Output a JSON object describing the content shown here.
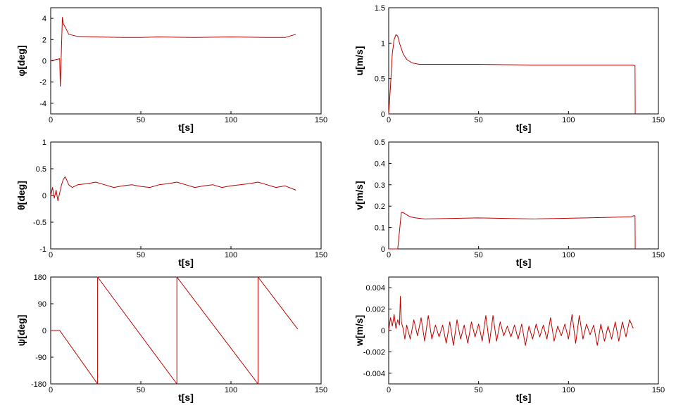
{
  "chart_data": [
    {
      "id": "phi",
      "type": "line",
      "xlabel": "t[s]",
      "ylabel": "φ[deg]",
      "xlim": [
        0,
        150
      ],
      "ylim": [
        -5,
        5
      ],
      "xticks": [
        "0",
        "50",
        "100",
        "150"
      ],
      "yticks": [
        {
          "v": 4,
          "label": "4"
        },
        {
          "v": 2,
          "label": "2"
        },
        {
          "v": 0,
          "label": "0"
        },
        {
          "v": -2,
          "label": "-2"
        },
        {
          "v": -4,
          "label": "-4"
        }
      ],
      "series": [
        {
          "name": "phi",
          "x": [
            0,
            5,
            5.3,
            5.6,
            6,
            6.5,
            7,
            8,
            10,
            15,
            25,
            40,
            50,
            60,
            80,
            100,
            120,
            130,
            136
          ],
          "y": [
            0,
            0.2,
            -2.4,
            -1.2,
            1.5,
            4.1,
            3.5,
            3.2,
            2.5,
            2.3,
            2.25,
            2.2,
            2.2,
            2.25,
            2.2,
            2.25,
            2.2,
            2.2,
            2.5
          ]
        }
      ]
    },
    {
      "id": "u",
      "type": "line",
      "xlabel": "t[s]",
      "ylabel": "u[m/s]",
      "xlim": [
        0,
        150
      ],
      "ylim": [
        0,
        1.5
      ],
      "xticks": [
        "0",
        "50",
        "100",
        "150"
      ],
      "yticks": [
        {
          "v": 1.5,
          "label": "1.5"
        },
        {
          "v": 1,
          "label": "1"
        },
        {
          "v": 0.5,
          "label": "0.5"
        },
        {
          "v": 0,
          "label": "0"
        }
      ],
      "series": [
        {
          "name": "u",
          "x": [
            0,
            1,
            2,
            3,
            4,
            5,
            6,
            8,
            10,
            13,
            17,
            25,
            50,
            80,
            110,
            136,
            137,
            137.1
          ],
          "y": [
            0,
            0.4,
            0.85,
            1.05,
            1.12,
            1.1,
            1.0,
            0.85,
            0.77,
            0.72,
            0.7,
            0.7,
            0.7,
            0.69,
            0.69,
            0.69,
            0.68,
            0
          ]
        }
      ]
    },
    {
      "id": "theta",
      "type": "line",
      "xlabel": "t[s]",
      "ylabel": "θ[deg]",
      "xlim": [
        0,
        150
      ],
      "ylim": [
        -1,
        1
      ],
      "xticks": [
        "0",
        "50",
        "100",
        "150"
      ],
      "yticks": [
        {
          "v": 1,
          "label": "1"
        },
        {
          "v": 0.5,
          "label": "0.5"
        },
        {
          "v": 0,
          "label": "0"
        },
        {
          "v": -0.5,
          "label": "-0.5"
        },
        {
          "v": -1,
          "label": "-1"
        }
      ],
      "series": [
        {
          "name": "theta",
          "x": [
            0,
            1,
            2,
            3,
            4,
            5,
            6,
            7,
            8,
            9,
            10,
            12,
            15,
            20,
            25,
            30,
            35,
            40,
            45,
            50,
            55,
            60,
            65,
            70,
            75,
            80,
            85,
            90,
            95,
            100,
            105,
            110,
            115,
            120,
            125,
            130,
            136
          ],
          "y": [
            0,
            0.15,
            -0.05,
            0.1,
            -0.1,
            0.05,
            0.2,
            0.3,
            0.35,
            0.28,
            0.2,
            0.15,
            0.2,
            0.22,
            0.25,
            0.2,
            0.15,
            0.18,
            0.2,
            0.17,
            0.15,
            0.2,
            0.22,
            0.25,
            0.2,
            0.15,
            0.18,
            0.2,
            0.15,
            0.18,
            0.2,
            0.22,
            0.25,
            0.2,
            0.15,
            0.18,
            0.1
          ]
        }
      ]
    },
    {
      "id": "v",
      "type": "line",
      "xlabel": "t[s]",
      "ylabel": "v[m/s]",
      "xlim": [
        0,
        150
      ],
      "ylim": [
        0,
        0.5
      ],
      "xticks": [
        "0",
        "50",
        "100",
        "150"
      ],
      "yticks": [
        {
          "v": 0.5,
          "label": "0.5"
        },
        {
          "v": 0.4,
          "label": "0.4"
        },
        {
          "v": 0.3,
          "label": "0.3"
        },
        {
          "v": 0.2,
          "label": "0.2"
        },
        {
          "v": 0.1,
          "label": "0.1"
        },
        {
          "v": 0,
          "label": "0"
        }
      ],
      "series": [
        {
          "name": "v",
          "x": [
            0,
            5,
            7,
            8,
            9,
            10,
            12,
            15,
            20,
            50,
            80,
            110,
            135,
            136,
            137,
            137.1
          ],
          "y": [
            0,
            0,
            0.17,
            0.17,
            0.165,
            0.16,
            0.15,
            0.145,
            0.14,
            0.145,
            0.14,
            0.145,
            0.15,
            0.155,
            0.155,
            0
          ]
        }
      ]
    },
    {
      "id": "psi",
      "type": "line",
      "xlabel": "t[s]",
      "ylabel": "ψ[deg]",
      "xlim": [
        0,
        150
      ],
      "ylim": [
        -180,
        180
      ],
      "xticks": [
        "0",
        "50",
        "100",
        "150"
      ],
      "yticks": [
        {
          "v": 180,
          "label": "180"
        },
        {
          "v": 90,
          "label": "90"
        },
        {
          "v": 0,
          "label": "0"
        },
        {
          "v": -90,
          "label": "-90"
        },
        {
          "v": -180,
          "label": "-180"
        }
      ],
      "series": [
        {
          "name": "psi",
          "x": [
            0,
            5,
            26,
            26,
            70,
            70,
            115,
            115,
            137
          ],
          "y": [
            0,
            0,
            -180,
            180,
            -180,
            180,
            -180,
            180,
            5
          ]
        }
      ]
    },
    {
      "id": "w",
      "type": "line",
      "xlabel": "t[s]",
      "ylabel": "w[m/s]",
      "xlim": [
        0,
        150
      ],
      "ylim": [
        -0.005,
        0.005
      ],
      "xticks": [
        "0",
        "50",
        "100",
        "150"
      ],
      "yticks": [
        {
          "v": 0.004,
          "label": "0.004"
        },
        {
          "v": 0.002,
          "label": "0.002"
        },
        {
          "v": 0,
          "label": "0"
        },
        {
          "v": -0.002,
          "label": "-0.002"
        },
        {
          "v": -0.004,
          "label": "-0.004"
        }
      ],
      "series": [
        {
          "name": "w",
          "x": [
            0,
            1,
            2,
            3,
            4,
            5,
            6,
            6.5,
            7,
            8,
            9,
            10,
            12,
            14,
            16,
            18,
            20,
            22,
            24,
            26,
            28,
            30,
            32,
            34,
            36,
            38,
            40,
            42,
            44,
            46,
            48,
            50,
            52,
            54,
            56,
            58,
            60,
            62,
            64,
            66,
            68,
            70,
            72,
            74,
            76,
            78,
            80,
            82,
            84,
            86,
            88,
            90,
            92,
            94,
            96,
            98,
            100,
            102,
            104,
            106,
            108,
            110,
            112,
            114,
            116,
            118,
            120,
            122,
            124,
            126,
            128,
            130,
            132,
            134,
            136
          ],
          "y": [
            0,
            0.0012,
            0.0004,
            0.0015,
            0.0002,
            0.001,
            0.0005,
            0.0032,
            0.0008,
            0.0002,
            -0.0008,
            0.0005,
            -0.0008,
            0.001,
            -0.0005,
            0.0012,
            -0.001,
            0.0014,
            -0.0008,
            0.0005,
            -0.0006,
            0.0005,
            -0.0012,
            0.0008,
            -0.0014,
            0.001,
            -0.0008,
            0.0005,
            -0.0012,
            0.0008,
            -0.0006,
            0.0006,
            -0.001,
            0.0014,
            -0.0012,
            0.0014,
            -0.001,
            0.0008,
            -0.0005,
            0.0004,
            -0.0006,
            0.0005,
            -0.0008,
            0.0006,
            -0.0014,
            0.0004,
            -0.0008,
            0.0006,
            -0.0006,
            0.0005,
            -0.0008,
            0.0012,
            -0.001,
            0.0004,
            -0.0005,
            0.0006,
            -0.0008,
            0.0015,
            -0.0012,
            0.0014,
            -0.0008,
            0.0006,
            -0.0004,
            0.0005,
            -0.0014,
            0.0006,
            -0.001,
            0.0004,
            -0.0008,
            0.0008,
            -0.001,
            0.0008,
            -0.0006,
            0.001,
            0.0002
          ]
        }
      ]
    }
  ]
}
